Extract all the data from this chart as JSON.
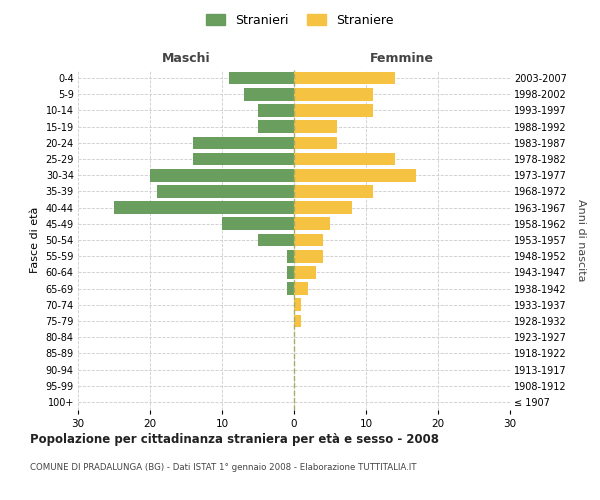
{
  "age_groups": [
    "100+",
    "95-99",
    "90-94",
    "85-89",
    "80-84",
    "75-79",
    "70-74",
    "65-69",
    "60-64",
    "55-59",
    "50-54",
    "45-49",
    "40-44",
    "35-39",
    "30-34",
    "25-29",
    "20-24",
    "15-19",
    "10-14",
    "5-9",
    "0-4"
  ],
  "birth_years": [
    "≤ 1907",
    "1908-1912",
    "1913-1917",
    "1918-1922",
    "1923-1927",
    "1928-1932",
    "1933-1937",
    "1938-1942",
    "1943-1947",
    "1948-1952",
    "1953-1957",
    "1958-1962",
    "1963-1967",
    "1968-1972",
    "1973-1977",
    "1978-1982",
    "1983-1987",
    "1988-1992",
    "1993-1997",
    "1998-2002",
    "2003-2007"
  ],
  "males": [
    0,
    0,
    0,
    0,
    0,
    0,
    0,
    1,
    1,
    1,
    5,
    10,
    25,
    19,
    20,
    14,
    14,
    5,
    5,
    7,
    9
  ],
  "females": [
    0,
    0,
    0,
    0,
    0,
    1,
    1,
    2,
    3,
    4,
    4,
    5,
    8,
    11,
    17,
    14,
    6,
    6,
    11,
    11,
    14
  ],
  "male_color": "#6a9e5f",
  "female_color": "#f5c242",
  "title": "Popolazione per cittadinanza straniera per età e sesso - 2008",
  "subtitle": "COMUNE DI PRADALUNGA (BG) - Dati ISTAT 1° gennaio 2008 - Elaborazione TUTTITALIA.IT",
  "ylabel_left": "Fasce di età",
  "ylabel_right": "Anni di nascita",
  "legend_male": "Stranieri",
  "legend_female": "Straniere",
  "xlim": 30,
  "background_color": "#ffffff",
  "grid_color": "#cccccc",
  "maschi_label": "Maschi",
  "femmine_label": "Femmine"
}
